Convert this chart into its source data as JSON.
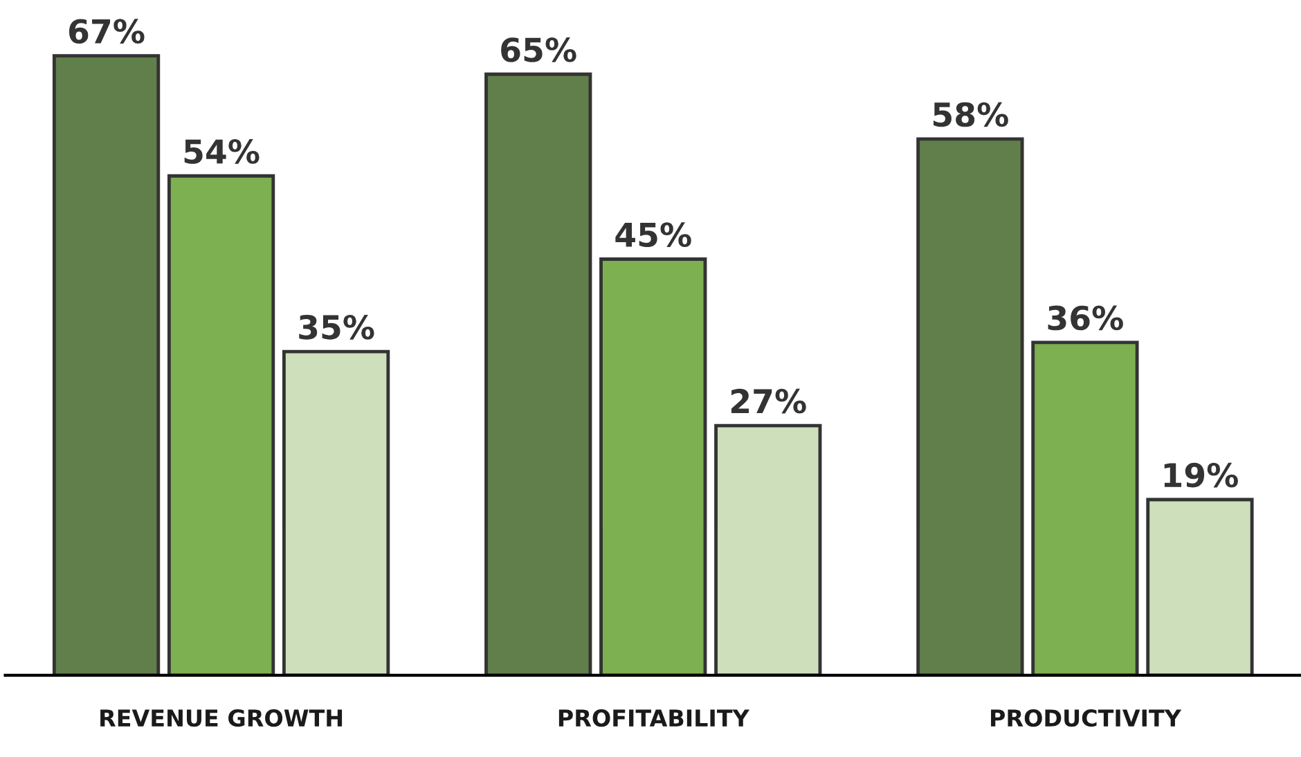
{
  "chart_data": {
    "type": "bar",
    "categories": [
      "REVENUE GROWTH",
      "PROFITABILITY",
      "PRODUCTIVITY"
    ],
    "series": [
      {
        "color": "#617f4a",
        "values": [
          67,
          65,
          58
        ],
        "value_labels": [
          "67%",
          "65%",
          "58%"
        ]
      },
      {
        "color": "#7db050",
        "values": [
          54,
          45,
          36
        ],
        "value_labels": [
          "54%",
          "45%",
          "36%"
        ]
      },
      {
        "color": "#cde0bb",
        "values": [
          35,
          27,
          19
        ],
        "value_labels": [
          "35%",
          "27%",
          "19%"
        ]
      }
    ],
    "grid": false,
    "legend": false
  }
}
